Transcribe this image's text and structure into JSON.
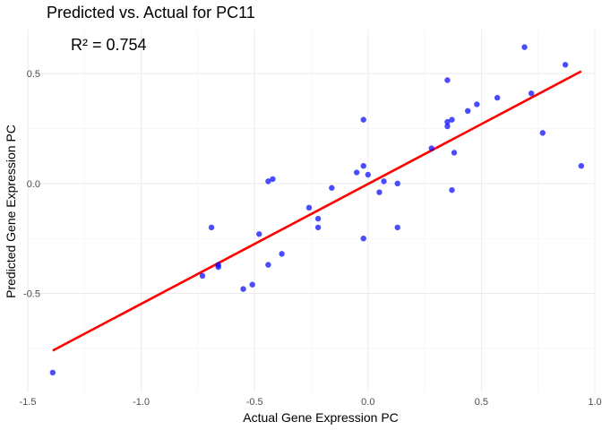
{
  "chart_data": {
    "type": "scatter",
    "title": "Predicted vs. Actual for PC11",
    "xlabel": "Actual Gene Expression PC",
    "ylabel": "Predicted Gene Expression PC",
    "annotation": "R² = 0.754",
    "xlim": [
      -1.5,
      1.0
    ],
    "ylim": [
      -0.95,
      0.7
    ],
    "x_ticks": [
      -1.5,
      -1.0,
      -0.5,
      0.0,
      0.5,
      1.0
    ],
    "x_tick_labels": [
      "-1.5",
      "-1.0",
      "-0.5",
      "0.0",
      "0.5",
      "1.0"
    ],
    "y_ticks": [
      -0.5,
      0.0,
      0.5
    ],
    "y_tick_labels": [
      "-0.5",
      "0.0",
      "0.5"
    ],
    "grid": true,
    "point_color": "#0000ff",
    "line_color": "#ff0000",
    "points": [
      {
        "x": -1.39,
        "y": -0.86
      },
      {
        "x": -0.73,
        "y": -0.42
      },
      {
        "x": -0.69,
        "y": -0.2
      },
      {
        "x": -0.66,
        "y": -0.37
      },
      {
        "x": -0.66,
        "y": -0.38
      },
      {
        "x": -0.55,
        "y": -0.48
      },
      {
        "x": -0.51,
        "y": -0.46
      },
      {
        "x": -0.48,
        "y": -0.23
      },
      {
        "x": -0.44,
        "y": -0.37
      },
      {
        "x": -0.44,
        "y": 0.01
      },
      {
        "x": -0.42,
        "y": 0.02
      },
      {
        "x": -0.38,
        "y": -0.32
      },
      {
        "x": -0.26,
        "y": -0.11
      },
      {
        "x": -0.22,
        "y": -0.16
      },
      {
        "x": -0.22,
        "y": -0.2
      },
      {
        "x": -0.16,
        "y": -0.02
      },
      {
        "x": -0.05,
        "y": 0.05
      },
      {
        "x": -0.02,
        "y": 0.08
      },
      {
        "x": -0.02,
        "y": 0.29
      },
      {
        "x": -0.02,
        "y": -0.25
      },
      {
        "x": 0.0,
        "y": 0.04
      },
      {
        "x": 0.05,
        "y": -0.04
      },
      {
        "x": 0.07,
        "y": 0.01
      },
      {
        "x": 0.13,
        "y": 0.0
      },
      {
        "x": 0.13,
        "y": -0.2
      },
      {
        "x": 0.28,
        "y": 0.16
      },
      {
        "x": 0.35,
        "y": 0.47
      },
      {
        "x": 0.35,
        "y": 0.28
      },
      {
        "x": 0.35,
        "y": 0.26
      },
      {
        "x": 0.37,
        "y": 0.29
      },
      {
        "x": 0.37,
        "y": -0.03
      },
      {
        "x": 0.38,
        "y": 0.14
      },
      {
        "x": 0.44,
        "y": 0.33
      },
      {
        "x": 0.48,
        "y": 0.36
      },
      {
        "x": 0.57,
        "y": 0.39
      },
      {
        "x": 0.69,
        "y": 0.62
      },
      {
        "x": 0.72,
        "y": 0.41
      },
      {
        "x": 0.77,
        "y": 0.23
      },
      {
        "x": 0.87,
        "y": 0.54
      },
      {
        "x": 0.94,
        "y": 0.08
      }
    ],
    "fit_line": {
      "x": [
        -1.39,
        0.94
      ],
      "y": [
        -0.76,
        0.51
      ]
    }
  }
}
